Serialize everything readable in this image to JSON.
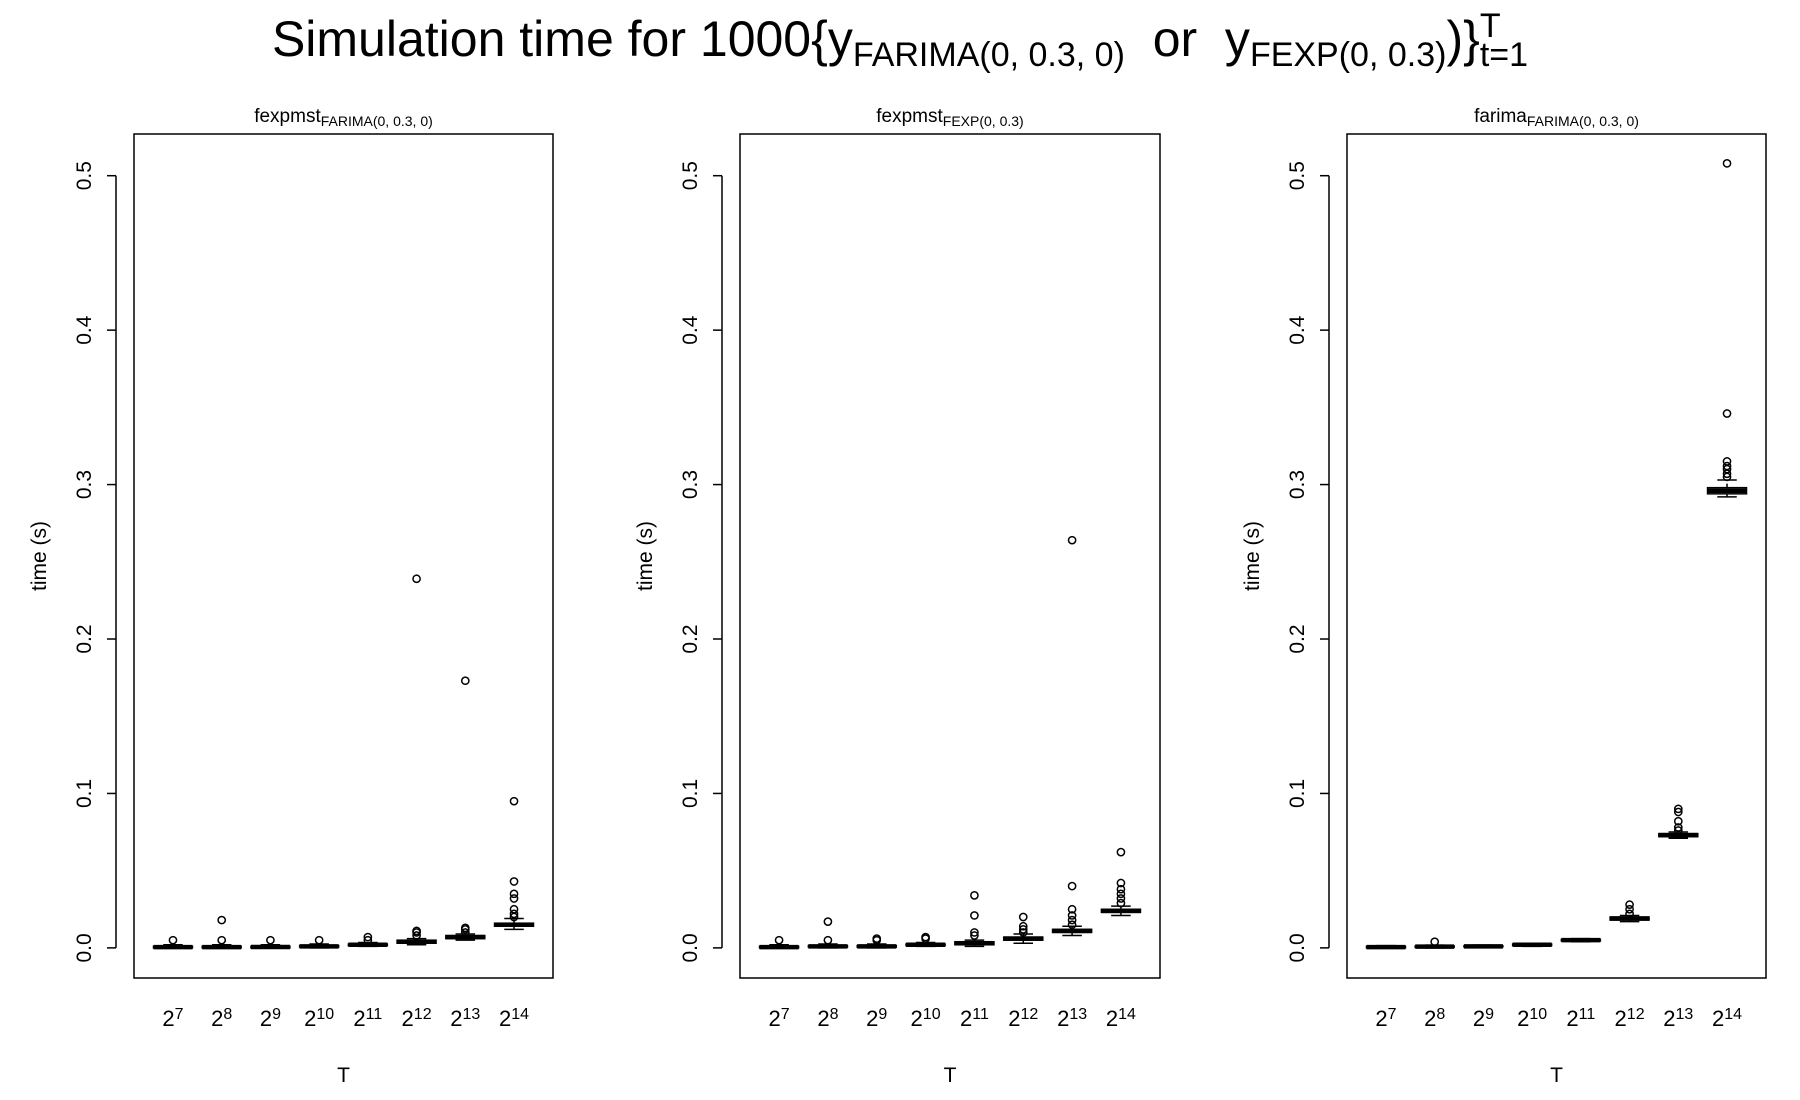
{
  "title": [
    {
      "text": "Simulation time for 1000{y",
      "pos": "base"
    },
    {
      "text": "FARIMA(0, 0.3, 0)",
      "pos": "sub"
    },
    {
      "text": "  or  y",
      "pos": "base"
    },
    {
      "text": "FEXP(0, 0.3)",
      "pos": "sub"
    },
    {
      "text": ")}",
      "pos": "base"
    },
    {
      "text": "t=1",
      "pos": "sub"
    },
    {
      "text": "T",
      "pos": "sup"
    }
  ],
  "chart_data": [
    {
      "type": "boxplot",
      "title": {
        "main": "fexpmst",
        "sub": "FARIMA(0, 0.3, 0)"
      },
      "xlabel": "T",
      "ylabel": "time (s)",
      "color": "#000000",
      "categories": [
        {
          "base": "2",
          "sup": "7"
        },
        {
          "base": "2",
          "sup": "8"
        },
        {
          "base": "2",
          "sup": "9"
        },
        {
          "base": "2",
          "sup": "10"
        },
        {
          "base": "2",
          "sup": "11"
        },
        {
          "base": "2",
          "sup": "12"
        },
        {
          "base": "2",
          "sup": "13"
        },
        {
          "base": "2",
          "sup": "14"
        }
      ],
      "ylim": [
        -0.0195,
        0.527
      ],
      "yticks": [
        {
          "value": 0,
          "label": "0.0"
        },
        0.1,
        0.2,
        0.3,
        0.4,
        0.5
      ],
      "boxes": [
        {
          "whislo": 0,
          "q1": 0,
          "med": 0.0005,
          "q3": 0.001,
          "whishi": 0.002,
          "fliers": [
            0.005
          ]
        },
        {
          "whislo": 0,
          "q1": 0,
          "med": 0.0005,
          "q3": 0.001,
          "whishi": 0.002,
          "fliers": [
            0.005,
            0.018
          ]
        },
        {
          "whislo": 0,
          "q1": 0,
          "med": 0.0006,
          "q3": 0.001,
          "whishi": 0.002,
          "fliers": [
            0.005
          ]
        },
        {
          "whislo": 0,
          "q1": 0.0005,
          "med": 0.001,
          "q3": 0.0015,
          "whishi": 0.0025,
          "fliers": [
            0.005
          ]
        },
        {
          "whislo": 0.001,
          "q1": 0.0015,
          "med": 0.002,
          "q3": 0.0025,
          "whishi": 0.0035,
          "fliers": [
            0.005,
            0.007
          ]
        },
        {
          "whislo": 0.002,
          "q1": 0.003,
          "med": 0.004,
          "q3": 0.005,
          "whishi": 0.006,
          "fliers": [
            0.008,
            0.01,
            0.011,
            0.239
          ]
        },
        {
          "whislo": 0.005,
          "q1": 0.006,
          "med": 0.007,
          "q3": 0.008,
          "whishi": 0.009,
          "fliers": [
            0.01,
            0.012,
            0.013,
            0.173
          ]
        },
        {
          "whislo": 0.012,
          "q1": 0.014,
          "med": 0.015,
          "q3": 0.016,
          "whishi": 0.019,
          "fliers": [
            0.02,
            0.022,
            0.025,
            0.032,
            0.035,
            0.043,
            0.095
          ]
        }
      ]
    },
    {
      "type": "boxplot",
      "title": {
        "main": "fexpmst",
        "sub": "FEXP(0, 0.3)"
      },
      "xlabel": "T",
      "ylabel": "time (s)",
      "color": "#000000",
      "categories": [
        {
          "base": "2",
          "sup": "7"
        },
        {
          "base": "2",
          "sup": "8"
        },
        {
          "base": "2",
          "sup": "9"
        },
        {
          "base": "2",
          "sup": "10"
        },
        {
          "base": "2",
          "sup": "11"
        },
        {
          "base": "2",
          "sup": "12"
        },
        {
          "base": "2",
          "sup": "13"
        },
        {
          "base": "2",
          "sup": "14"
        }
      ],
      "ylim": [
        -0.0195,
        0.527
      ],
      "yticks": [
        {
          "value": 0,
          "label": "0.0"
        },
        0.1,
        0.2,
        0.3,
        0.4,
        0.5
      ],
      "boxes": [
        {
          "whislo": 0,
          "q1": 0,
          "med": 0.0005,
          "q3": 0.001,
          "whishi": 0.002,
          "fliers": [
            0.005
          ]
        },
        {
          "whislo": 0,
          "q1": 0.0005,
          "med": 0.001,
          "q3": 0.0015,
          "whishi": 0.0025,
          "fliers": [
            0.005,
            0.017
          ]
        },
        {
          "whislo": 0,
          "q1": 0.0005,
          "med": 0.001,
          "q3": 0.0015,
          "whishi": 0.0025,
          "fliers": [
            0.005,
            0.006
          ]
        },
        {
          "whislo": 0.001,
          "q1": 0.0015,
          "med": 0.002,
          "q3": 0.0025,
          "whishi": 0.0035,
          "fliers": [
            0.006,
            0.007
          ]
        },
        {
          "whislo": 0.001,
          "q1": 0.002,
          "med": 0.003,
          "q3": 0.004,
          "whishi": 0.005,
          "fliers": [
            0.008,
            0.01,
            0.021,
            0.034
          ]
        },
        {
          "whislo": 0.003,
          "q1": 0.005,
          "med": 0.006,
          "q3": 0.007,
          "whishi": 0.009,
          "fliers": [
            0.01,
            0.012,
            0.014,
            0.02
          ]
        },
        {
          "whislo": 0.008,
          "q1": 0.01,
          "med": 0.011,
          "q3": 0.012,
          "whishi": 0.014,
          "fliers": [
            0.015,
            0.018,
            0.021,
            0.025,
            0.04,
            0.264
          ]
        },
        {
          "whislo": 0.021,
          "q1": 0.023,
          "med": 0.024,
          "q3": 0.025,
          "whishi": 0.027,
          "fliers": [
            0.029,
            0.032,
            0.035,
            0.038,
            0.042,
            0.062
          ]
        }
      ]
    },
    {
      "type": "boxplot",
      "title": {
        "main": "farima",
        "sub": "FARIMA(0, 0.3, 0)"
      },
      "xlabel": "T",
      "ylabel": "time (s)",
      "color": "#000000",
      "categories": [
        {
          "base": "2",
          "sup": "7"
        },
        {
          "base": "2",
          "sup": "8"
        },
        {
          "base": "2",
          "sup": "9"
        },
        {
          "base": "2",
          "sup": "10"
        },
        {
          "base": "2",
          "sup": "11"
        },
        {
          "base": "2",
          "sup": "12"
        },
        {
          "base": "2",
          "sup": "13"
        },
        {
          "base": "2",
          "sup": "14"
        }
      ],
      "ylim": [
        -0.0195,
        0.527
      ],
      "yticks": [
        {
          "value": 0,
          "label": "0.0"
        },
        0.1,
        0.2,
        0.3,
        0.4,
        0.5
      ],
      "boxes": [
        {
          "whislo": 0,
          "q1": 0,
          "med": 0.0005,
          "q3": 0.001,
          "whishi": 0.0015,
          "fliers": []
        },
        {
          "whislo": 0,
          "q1": 0.0004,
          "med": 0.0008,
          "q3": 0.0012,
          "whishi": 0.0018,
          "fliers": [
            0.004
          ]
        },
        {
          "whislo": 0.0003,
          "q1": 0.0007,
          "med": 0.001,
          "q3": 0.0013,
          "whishi": 0.0018,
          "fliers": []
        },
        {
          "whislo": 0.001,
          "q1": 0.0015,
          "med": 0.002,
          "q3": 0.0025,
          "whishi": 0.003,
          "fliers": []
        },
        {
          "whislo": 0.004,
          "q1": 0.0045,
          "med": 0.005,
          "q3": 0.0055,
          "whishi": 0.006,
          "fliers": []
        },
        {
          "whislo": 0.017,
          "q1": 0.018,
          "med": 0.019,
          "q3": 0.02,
          "whishi": 0.021,
          "fliers": [
            0.022,
            0.025,
            0.028
          ]
        },
        {
          "whislo": 0.071,
          "q1": 0.072,
          "med": 0.073,
          "q3": 0.074,
          "whishi": 0.075,
          "fliers": [
            0.076,
            0.078,
            0.082,
            0.088,
            0.09
          ]
        },
        {
          "whislo": 0.292,
          "q1": 0.294,
          "med": 0.296,
          "q3": 0.298,
          "whishi": 0.303,
          "fliers": [
            0.305,
            0.307,
            0.31,
            0.312,
            0.315,
            0.346,
            0.508
          ]
        }
      ]
    }
  ]
}
